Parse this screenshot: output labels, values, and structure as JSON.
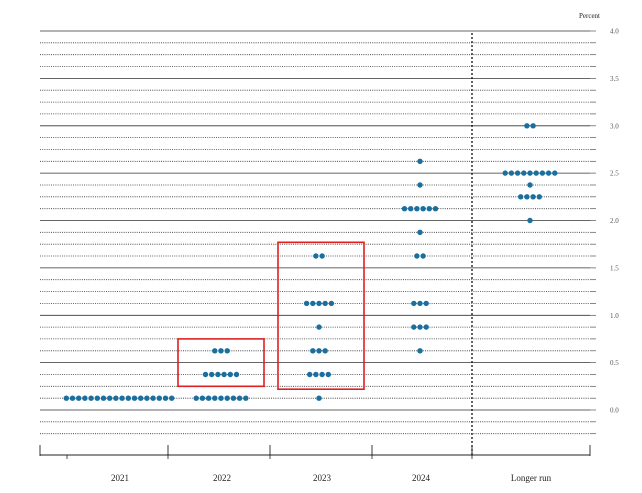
{
  "chart_data": {
    "type": "scatter",
    "unit_label": "Percent",
    "categories": [
      "2021",
      "2022",
      "2023",
      "2024",
      "Longer run"
    ],
    "ylim": [
      -0.375,
      4.0
    ],
    "yticks": [
      0.0,
      0.5,
      1.0,
      1.5,
      2.0,
      2.5,
      3.0,
      3.5,
      4.0
    ],
    "ytick_labels": [
      "0.0",
      "0.5",
      "1.0",
      "1.5",
      "2.0",
      "2.5",
      "3.0",
      "3.5",
      "4.0"
    ],
    "grid": true,
    "dot_color": "#1a6f9f",
    "highlight_color": "#e02020",
    "points": [
      {
        "category": "2021",
        "rates": [
          {
            "y": 0.125,
            "count": 18
          }
        ]
      },
      {
        "category": "2022",
        "rates": [
          {
            "y": 0.625,
            "count": 3
          },
          {
            "y": 0.375,
            "count": 6
          },
          {
            "y": 0.125,
            "count": 9
          }
        ]
      },
      {
        "category": "2023",
        "rates": [
          {
            "y": 1.625,
            "count": 2
          },
          {
            "y": 1.125,
            "count": 5
          },
          {
            "y": 0.875,
            "count": 1
          },
          {
            "y": 0.625,
            "count": 3
          },
          {
            "y": 0.375,
            "count": 4
          },
          {
            "y": 0.125,
            "count": 1
          }
        ]
      },
      {
        "category": "2024",
        "rates": [
          {
            "y": 2.625,
            "count": 1
          },
          {
            "y": 2.375,
            "count": 1
          },
          {
            "y": 2.125,
            "count": 6
          },
          {
            "y": 1.875,
            "count": 1
          },
          {
            "y": 1.625,
            "count": 2
          },
          {
            "y": 1.125,
            "count": 3
          },
          {
            "y": 0.875,
            "count": 3
          },
          {
            "y": 0.625,
            "count": 1
          }
        ]
      },
      {
        "category": "Longer run",
        "rates": [
          {
            "y": 3.0,
            "count": 2
          },
          {
            "y": 2.5,
            "count": 9
          },
          {
            "y": 2.375,
            "count": 1
          },
          {
            "y": 2.25,
            "count": 4
          },
          {
            "y": 2.0,
            "count": 1
          }
        ]
      }
    ],
    "highlight_boxes": [
      {
        "category": "2022",
        "y_range": [
          0.25,
          0.75
        ]
      },
      {
        "category": "2023",
        "y_range": [
          0.22,
          1.77
        ]
      }
    ]
  }
}
